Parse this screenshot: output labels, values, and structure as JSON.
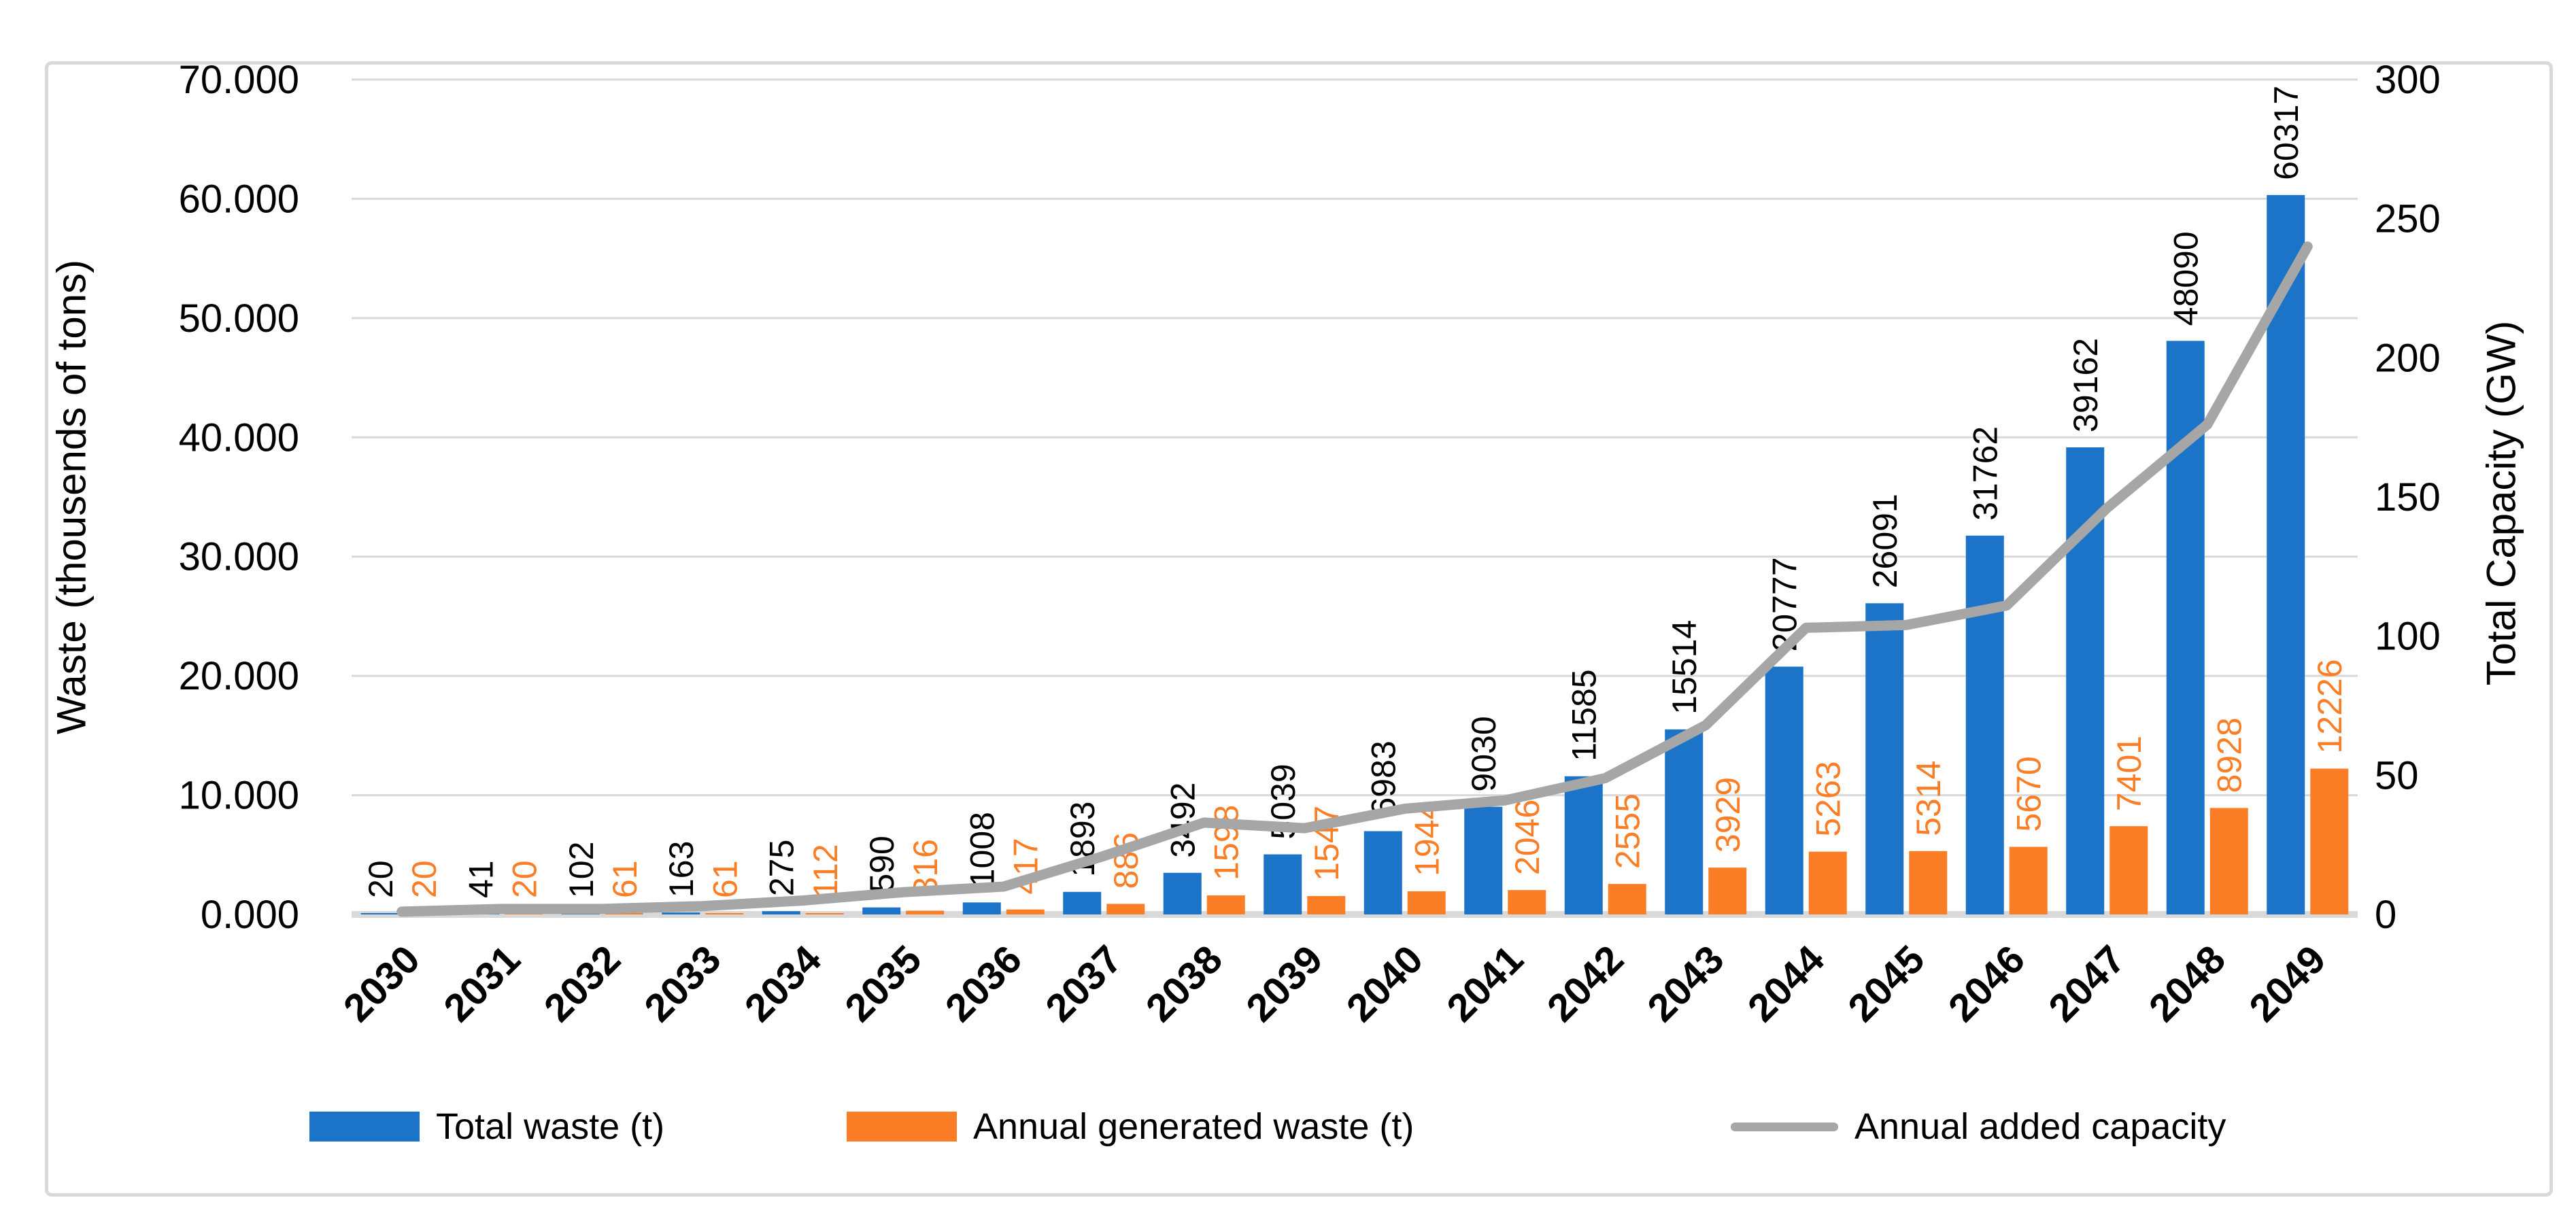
{
  "colors": {
    "total_waste_bar": "#1B74C7",
    "annual_waste_bar": "#FB7E26",
    "capacity_line": "#A6A6A6",
    "gridline": "#D9D9D9",
    "baseline": "#D9D9D9",
    "border": "#D9D9D9",
    "text": "#000000"
  },
  "chart_data": {
    "type": "bar+line-combo",
    "categories": [
      "2030",
      "2031",
      "2032",
      "2033",
      "2034",
      "2035",
      "2036",
      "2037",
      "2038",
      "2039",
      "2040",
      "2041",
      "2042",
      "2043",
      "2044",
      "2045",
      "2046",
      "2047",
      "2048",
      "2049"
    ],
    "series": [
      {
        "name": "Total waste (t)",
        "type": "bar",
        "axis": "left",
        "color": "#1B74C7",
        "values": [
          20,
          41,
          102,
          163,
          275,
          590,
          1008,
          1893,
          3492,
          5039,
          6983,
          9030,
          11585,
          15514,
          20777,
          26091,
          31762,
          39162,
          48090,
          60317
        ]
      },
      {
        "name": "Annual generated waste (t)",
        "type": "bar",
        "axis": "left",
        "color": "#FB7E26",
        "values": [
          20,
          20,
          61,
          61,
          112,
          316,
          417,
          886,
          1598,
          1547,
          1944,
          2046,
          2555,
          3929,
          5263,
          5314,
          5670,
          7401,
          8928,
          12226
        ]
      },
      {
        "name": "Annual added capacity",
        "type": "line",
        "axis": "right",
        "color": "#A6A6A6",
        "values_gw_estimated": [
          1,
          2,
          2,
          3,
          5,
          8,
          10,
          21,
          33,
          31,
          38,
          41,
          49,
          68,
          103,
          104,
          111,
          146,
          176,
          240
        ]
      }
    ],
    "left_axis": {
      "title": "Waste (thousends of tons)",
      "ticks": [
        "0.000",
        "10.000",
        "20.000",
        "30.000",
        "40.000",
        "50.000",
        "60.000",
        "70.000"
      ],
      "range": [
        0,
        70000
      ]
    },
    "right_axis": {
      "title": "Total Capacity (GW)",
      "ticks": [
        "0",
        "50",
        "100",
        "150",
        "200",
        "250",
        "300"
      ],
      "range": [
        0,
        300
      ]
    },
    "x_axis": {
      "label_rotation_deg": 45
    },
    "grid": true,
    "legend_position": "bottom",
    "data_labels": {
      "rotation_deg": 90,
      "bar_series_labeled": true,
      "line_series_labeled": false
    }
  }
}
